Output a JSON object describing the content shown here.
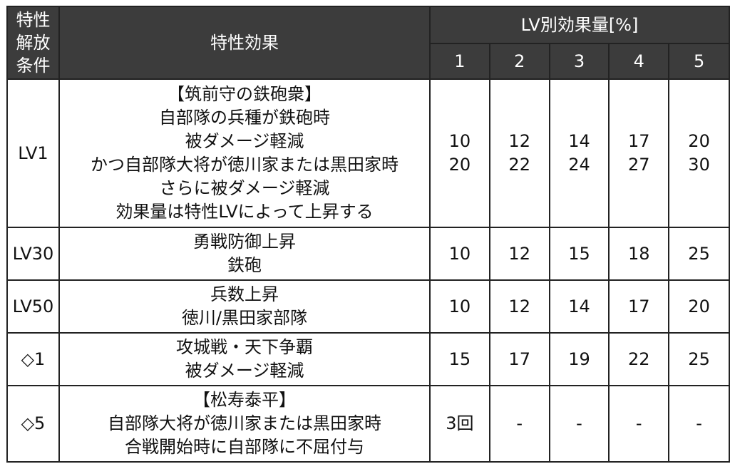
{
  "header": {
    "condition_lines": [
      "特性",
      "解放",
      "条件"
    ],
    "effect": "特性効果",
    "lv_effect": "LV別効果量[%]",
    "levels": [
      "1",
      "2",
      "3",
      "4",
      "5"
    ]
  },
  "rows": [
    {
      "condition": "LV1",
      "effect_lines": [
        "【筑前守の鉄砲衆】",
        "自部隊の兵種が鉄砲時",
        "被ダメージ軽減",
        "かつ自部隊大将が徳川家または黒田家時",
        "さらに被ダメージ軽減",
        "効果量は特性LVによって上昇する"
      ],
      "values": [
        [
          "10",
          "20"
        ],
        [
          "12",
          "22"
        ],
        [
          "14",
          "24"
        ],
        [
          "17",
          "27"
        ],
        [
          "20",
          "30"
        ]
      ]
    },
    {
      "condition": "LV30",
      "effect_lines": [
        "勇戦防御上昇",
        "鉄砲"
      ],
      "values": [
        [
          "10"
        ],
        [
          "12"
        ],
        [
          "15"
        ],
        [
          "18"
        ],
        [
          "25"
        ]
      ]
    },
    {
      "condition": "LV50",
      "effect_lines": [
        "兵数上昇",
        "徳川/黒田家部隊"
      ],
      "values": [
        [
          "10"
        ],
        [
          "12"
        ],
        [
          "14"
        ],
        [
          "17"
        ],
        [
          "20"
        ]
      ]
    },
    {
      "condition": "◇1",
      "effect_lines": [
        "攻城戦・天下争覇",
        "被ダメージ軽減"
      ],
      "values": [
        [
          "15"
        ],
        [
          "17"
        ],
        [
          "19"
        ],
        [
          "22"
        ],
        [
          "25"
        ]
      ]
    },
    {
      "condition": "◇5",
      "effect_lines": [
        "【松寿泰平】",
        "自部隊大将が徳川家または黒田家時",
        "合戦開始時に自部隊に不屈付与"
      ],
      "values": [
        [
          "3回"
        ],
        [
          "-"
        ],
        [
          "-"
        ],
        [
          "-"
        ],
        [
          "-"
        ]
      ]
    }
  ]
}
